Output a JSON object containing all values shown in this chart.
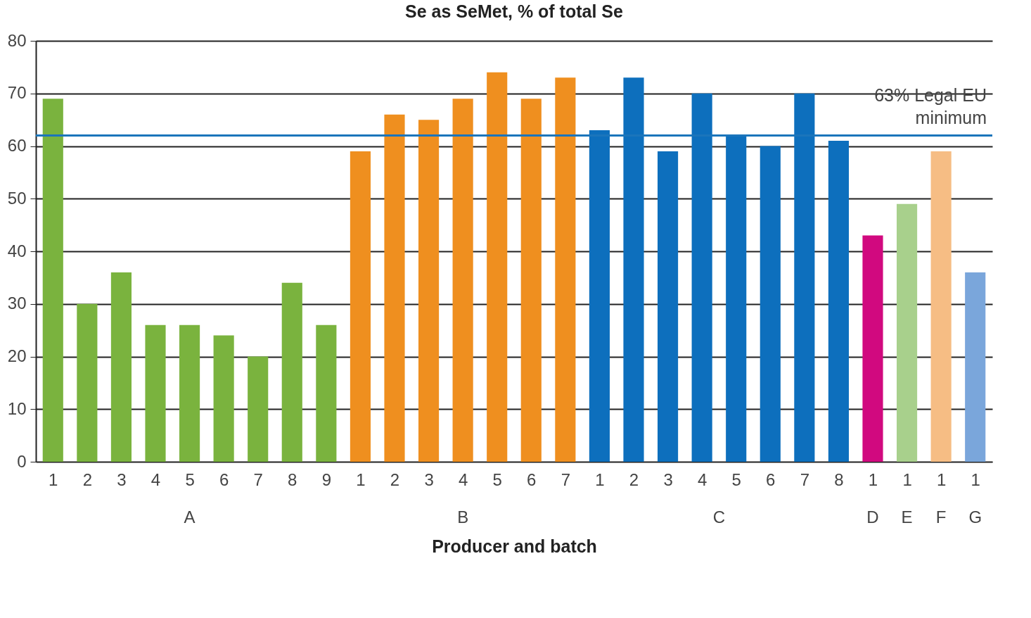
{
  "chart_data": {
    "type": "bar",
    "title": "Se as SeMet, % of total Se",
    "xlabel": "Producer and batch",
    "categories": [
      "1",
      "2",
      "3",
      "4",
      "5",
      "6",
      "7",
      "8",
      "9",
      "1",
      "2",
      "3",
      "4",
      "5",
      "6",
      "7",
      "1",
      "2",
      "3",
      "4",
      "5",
      "6",
      "7",
      "8",
      "1",
      "1",
      "1",
      "1"
    ],
    "series": [
      {
        "name": "A",
        "color": "#7ab33e",
        "values": [
          69,
          30,
          36,
          26,
          26,
          24,
          20,
          34,
          26,
          null,
          null,
          null,
          null,
          null,
          null,
          null,
          null,
          null,
          null,
          null,
          null,
          null,
          null,
          null,
          null,
          null,
          null,
          null
        ]
      },
      {
        "name": "B",
        "color": "#ef8f1f",
        "values": [
          null,
          null,
          null,
          null,
          null,
          null,
          null,
          null,
          null,
          59,
          66,
          65,
          69,
          74,
          69,
          73,
          null,
          null,
          null,
          null,
          null,
          null,
          null,
          null,
          null,
          null,
          null,
          null
        ]
      },
      {
        "name": "C",
        "color": "#0d6fbd",
        "values": [
          null,
          null,
          null,
          null,
          null,
          null,
          null,
          null,
          null,
          null,
          null,
          null,
          null,
          null,
          null,
          null,
          63,
          73,
          59,
          70,
          62,
          60,
          70,
          61,
          null,
          null,
          null,
          null
        ]
      },
      {
        "name": "D",
        "color": "#d1097f",
        "values": [
          null,
          null,
          null,
          null,
          null,
          null,
          null,
          null,
          null,
          null,
          null,
          null,
          null,
          null,
          null,
          null,
          null,
          null,
          null,
          null,
          null,
          null,
          null,
          null,
          43,
          null,
          null,
          null
        ]
      },
      {
        "name": "E",
        "color": "#a8d08c",
        "values": [
          null,
          null,
          null,
          null,
          null,
          null,
          null,
          null,
          null,
          null,
          null,
          null,
          null,
          null,
          null,
          null,
          null,
          null,
          null,
          null,
          null,
          null,
          null,
          null,
          null,
          49,
          null,
          null
        ]
      },
      {
        "name": "F",
        "color": "#f6bd84",
        "values": [
          null,
          null,
          null,
          null,
          null,
          null,
          null,
          null,
          null,
          null,
          null,
          null,
          null,
          null,
          null,
          null,
          null,
          null,
          null,
          null,
          null,
          null,
          null,
          null,
          null,
          null,
          59,
          null
        ]
      },
      {
        "name": "G",
        "color": "#7aa6db",
        "values": [
          null,
          null,
          null,
          null,
          null,
          null,
          null,
          null,
          null,
          null,
          null,
          null,
          null,
          null,
          null,
          null,
          null,
          null,
          null,
          null,
          null,
          null,
          null,
          null,
          null,
          null,
          null,
          36
        ]
      }
    ],
    "ylim": [
      0,
      80
    ],
    "yticks": [
      0,
      10,
      20,
      30,
      40,
      50,
      60,
      70,
      80
    ],
    "grid": "y",
    "ref_lines": [
      {
        "axis": "y",
        "value": 62,
        "label": "63% Legal EU minimum",
        "color": "#1b75bb"
      }
    ]
  }
}
